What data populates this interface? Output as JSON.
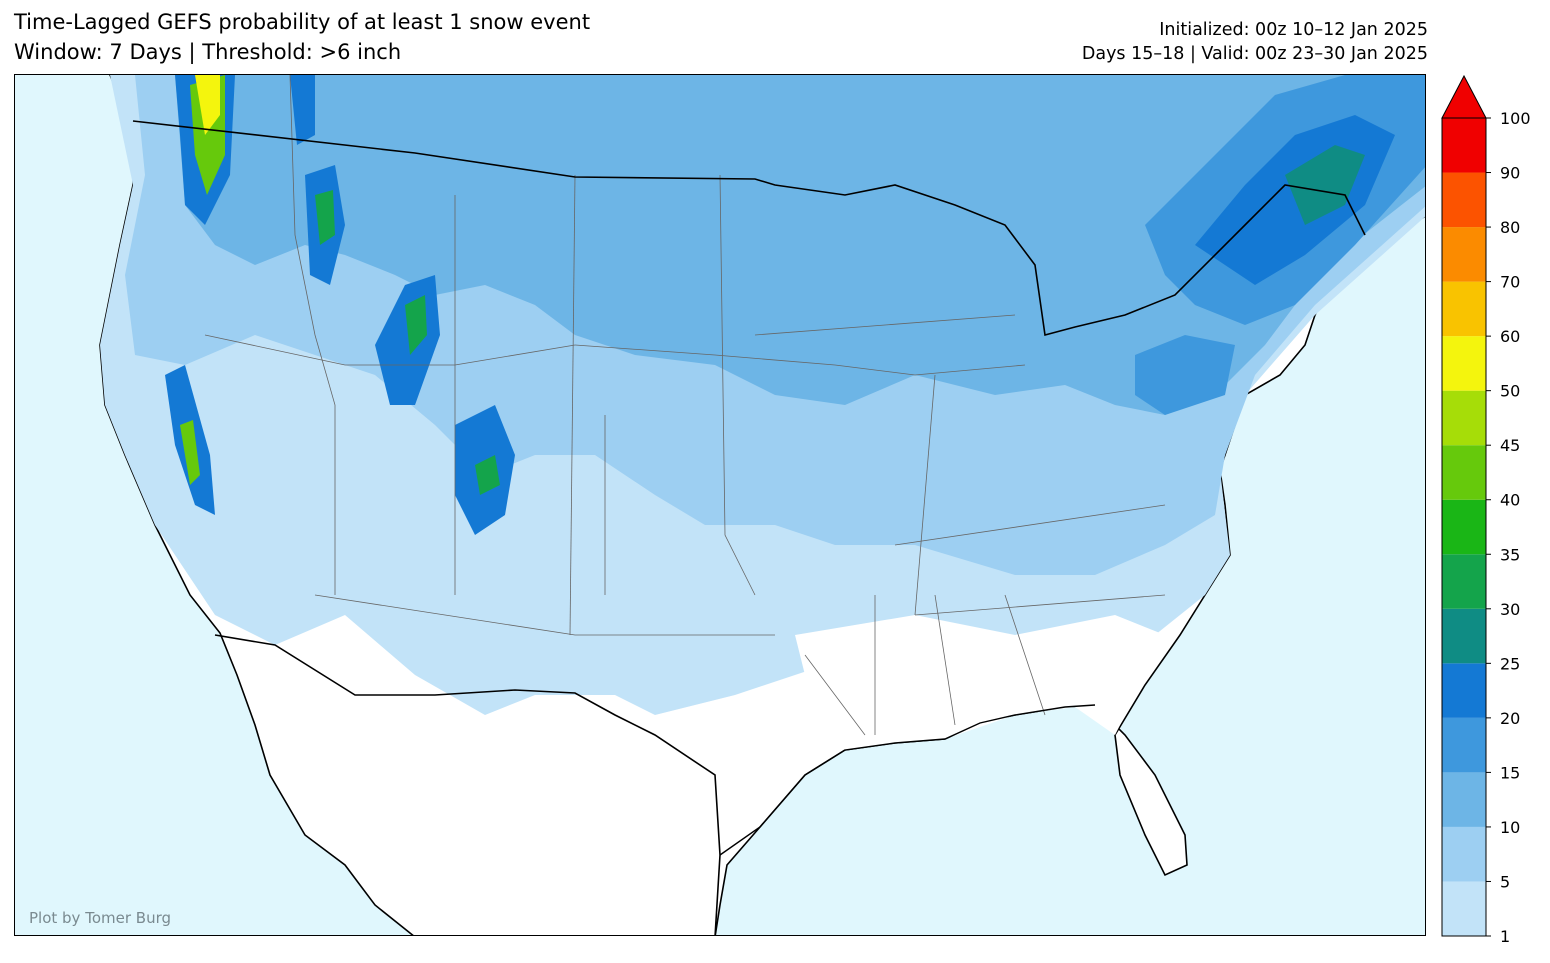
{
  "header": {
    "title_line1": "Time-Lagged GEFS probability of at least 1 snow event",
    "title_line2": "Window: 7 Days | Threshold: >6 inch",
    "init_line": "Initialized: 00z 10–12 Jan 2025",
    "valid_line": "Days 15–18 | Valid: 00z 23–30 Jan 2025"
  },
  "map": {
    "region": "Contiguous United States",
    "ocean_color": "#e0f7fd",
    "land_color": "#ffffff",
    "credit": "Plot by Tomer Burg"
  },
  "colorbar": {
    "levels": [
      "1",
      "5",
      "10",
      "15",
      "20",
      "25",
      "30",
      "35",
      "40",
      "45",
      "50",
      "60",
      "70",
      "80",
      "90",
      "100"
    ],
    "colors": [
      "#c2e3f8",
      "#9dcff2",
      "#6db5e6",
      "#3e98dd",
      "#1479d4",
      "#0f8c84",
      "#14a44b",
      "#1ab616",
      "#66c90c",
      "#a6dd08",
      "#f4f50d",
      "#f9c300",
      "#fb8b00",
      "#fc5300",
      "#f00000"
    ],
    "extend": "max"
  }
}
